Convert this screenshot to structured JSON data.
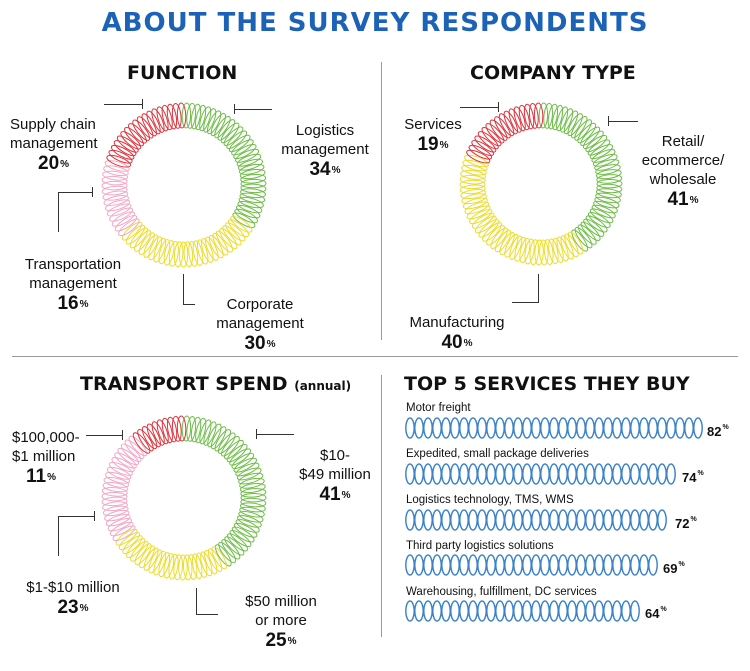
{
  "title": "ABOUT THE SURVEY RESPONDENTS",
  "colors": {
    "title": "#1c63b7",
    "red": "#e0313a",
    "pink": "#f3a7c4",
    "yellow": "#ecdc2a",
    "green": "#6cbd45",
    "coil": "#3b82c9"
  },
  "chart_data": [
    {
      "type": "pie",
      "title": "FUNCTION",
      "categories": [
        "Logistics management",
        "Corporate management",
        "Transportation management",
        "Supply chain management"
      ],
      "values": [
        34,
        30,
        16,
        20
      ],
      "unit": "%"
    },
    {
      "type": "pie",
      "title": "COMPANY TYPE",
      "categories": [
        "Retail/ ecommerce/ wholesale",
        "Manufacturing",
        "Services"
      ],
      "values": [
        41,
        40,
        19
      ],
      "unit": "%"
    },
    {
      "type": "pie",
      "title": "TRANSPORT SPEND",
      "title_suffix": "(annual)",
      "categories": [
        "$10- $49 million",
        "$50 million or more",
        "$1-$10 million",
        "$100,000- $1 million"
      ],
      "values": [
        41,
        25,
        23,
        11
      ],
      "unit": "%"
    },
    {
      "type": "bar",
      "title": "TOP 5 SERVICES THEY BUY",
      "categories": [
        "Motor freight",
        "Expedited, small package deliveries",
        "Logistics technology, TMS, WMS",
        "Third party logistics solutions",
        "Warehousing, fulfillment, DC services"
      ],
      "values": [
        82,
        74,
        72,
        69,
        64
      ],
      "unit": "%"
    }
  ],
  "labels": {
    "function": [
      {
        "text": "Logistics\nmanagement",
        "value": "34"
      },
      {
        "text": "Corporate\nmanagement",
        "value": "30"
      },
      {
        "text": "Transportation\nmanagement",
        "value": "16"
      },
      {
        "text": "Supply chain\nmanagement",
        "value": "20"
      }
    ],
    "company": [
      {
        "text": "Retail/\necommerce/\nwholesale",
        "value": "41"
      },
      {
        "text": "Manufacturing",
        "value": "40"
      },
      {
        "text": "Services",
        "value": "19"
      }
    ],
    "spend": [
      {
        "text": "$10-\n$49 million",
        "value": "41"
      },
      {
        "text": "$50 million\nor more",
        "value": "25"
      },
      {
        "text": "$1-$10 million",
        "value": "23"
      },
      {
        "text": "$100,000-\n$1 million",
        "value": "11"
      }
    ],
    "services": [
      {
        "text": "Motor freight",
        "value": "82"
      },
      {
        "text": "Expedited, small package deliveries",
        "value": "74"
      },
      {
        "text": "Logistics technology, TMS, WMS",
        "value": "72"
      },
      {
        "text": "Third party logistics solutions",
        "value": "69"
      },
      {
        "text": "Warehousing, fulfillment, DC services",
        "value": "64"
      }
    ]
  },
  "pct_symbol": "%"
}
